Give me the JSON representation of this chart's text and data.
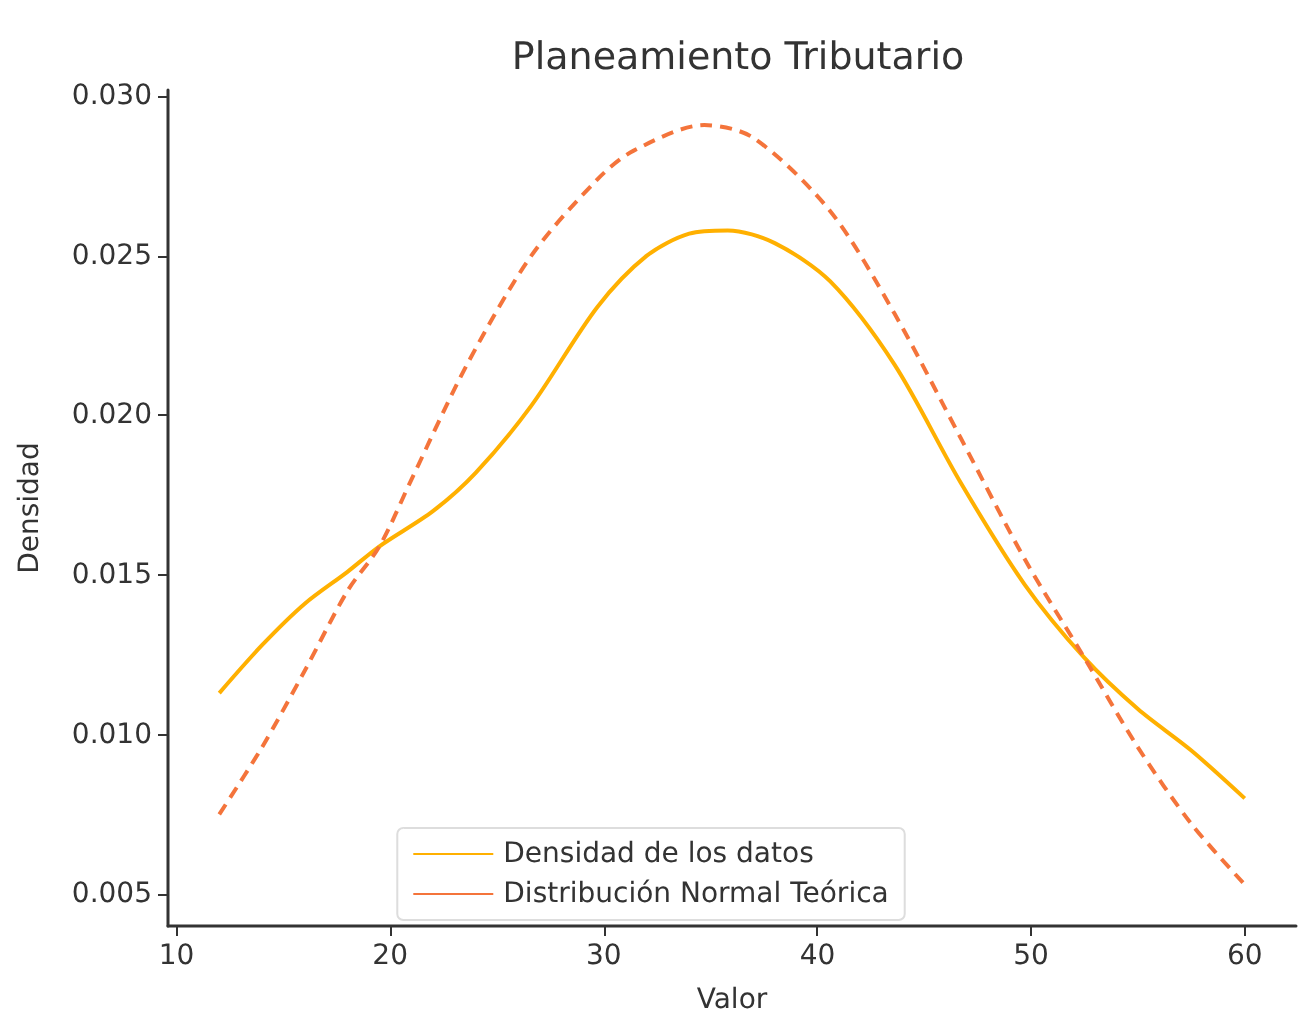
{
  "chart_data": {
    "type": "line",
    "title": "Planeamiento Tributario",
    "xlabel": "Valor",
    "ylabel": "Densidad",
    "xlim": [
      9.6,
      62.4
    ],
    "xticks": [
      10,
      20,
      30,
      40,
      50,
      60
    ],
    "ylim": [
      0.004,
      0.0302
    ],
    "yticks": [
      {
        "value": 0.005,
        "label": "0.005"
      },
      {
        "value": 0.01,
        "label": "0.010"
      },
      {
        "value": 0.015,
        "label": "0.015"
      },
      {
        "value": 0.02,
        "label": "0.020"
      },
      {
        "value": 0.025,
        "label": "0.025"
      },
      {
        "value": 0.03,
        "label": "0.030"
      }
    ],
    "grid": false,
    "legend": "bottom",
    "marker": "none",
    "series": [
      {
        "name": "Densidad de los datos",
        "color": "#ffb000",
        "line_style": "solid",
        "x": [
          12,
          14,
          16,
          18,
          19.5,
          22,
          24,
          26.6,
          29.7,
          32,
          34,
          35.8,
          38,
          40.6,
          43.6,
          46.7,
          49.7,
          52.5,
          55,
          57.5,
          60
        ],
        "values": [
          0.0113,
          0.0128,
          0.0141,
          0.0151,
          0.0159,
          0.017,
          0.0182,
          0.0203,
          0.0234,
          0.025,
          0.0257,
          0.0258,
          0.0254,
          0.0242,
          0.0216,
          0.0179,
          0.0147,
          0.0124,
          0.0108,
          0.0095,
          0.008
        ]
      },
      {
        "name": "Distribución Normal Teórica",
        "color": "#f4743b",
        "line_style": "dashed",
        "x": [
          12,
          14,
          16,
          18,
          19.5,
          21,
          23.6,
          26.6,
          29.7,
          31.4,
          34.7,
          37,
          40.6,
          43.6,
          46.7,
          49.7,
          52.5,
          55,
          57.5,
          60
        ],
        "values": [
          0.0075,
          0.0096,
          0.012,
          0.0145,
          0.0159,
          0.018,
          0.0216,
          0.025,
          0.0274,
          0.0283,
          0.0291,
          0.0287,
          0.0264,
          0.0232,
          0.0193,
          0.0155,
          0.0124,
          0.0096,
          0.0072,
          0.0053
        ]
      }
    ]
  }
}
